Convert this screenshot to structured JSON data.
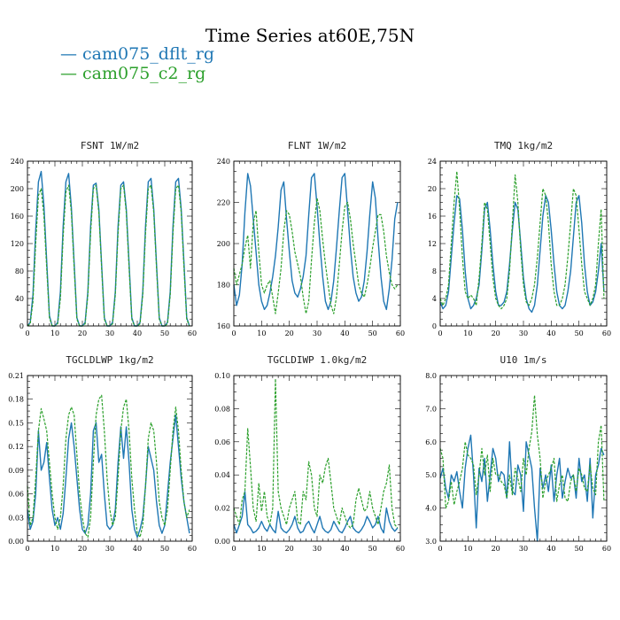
{
  "title": "Time Series at60E,75N",
  "legend": [
    {
      "label": "— cam075_dflt_rg",
      "color": "#1f77b4"
    },
    {
      "label": "— cam075_c2_rg",
      "color": "#2ca02c"
    }
  ],
  "chart_data": [
    {
      "type": "line",
      "title": "FSNT   1W/m2",
      "xlim": [
        0,
        60
      ],
      "ylim": [
        0,
        240
      ],
      "xticks": [
        0,
        10,
        20,
        30,
        40,
        50,
        60
      ],
      "yticks": [
        0,
        40,
        80,
        120,
        160,
        200,
        240
      ],
      "ytick_labels": [
        "0",
        "40",
        "80",
        "120",
        "160",
        "200",
        "240"
      ],
      "series": [
        {
          "color": "#1f77b4",
          "dashed": false,
          "values": [
            0,
            5,
            45,
            140,
            210,
            225,
            175,
            95,
            15,
            0,
            0,
            5,
            50,
            145,
            210,
            222,
            172,
            92,
            12,
            0,
            0,
            5,
            50,
            145,
            205,
            208,
            170,
            90,
            12,
            0,
            0,
            5,
            50,
            145,
            205,
            210,
            170,
            92,
            12,
            0,
            0,
            5,
            50,
            145,
            210,
            215,
            170,
            90,
            12,
            0,
            0,
            5,
            50,
            145,
            210,
            215,
            170,
            92,
            12,
            0
          ]
        },
        {
          "color": "#2ca02c",
          "dashed": true,
          "values": [
            0,
            3,
            35,
            120,
            190,
            200,
            160,
            85,
            12,
            0,
            0,
            3,
            40,
            130,
            195,
            205,
            165,
            85,
            10,
            0,
            0,
            3,
            45,
            135,
            200,
            205,
            165,
            85,
            10,
            0,
            0,
            3,
            45,
            135,
            200,
            205,
            165,
            85,
            10,
            0,
            0,
            3,
            45,
            135,
            200,
            205,
            165,
            85,
            10,
            0,
            0,
            3,
            45,
            135,
            200,
            205,
            165,
            85,
            10,
            0
          ]
        }
      ]
    },
    {
      "type": "line",
      "title": "FLNT   1W/m2",
      "xlim": [
        0,
        60
      ],
      "ylim": [
        160,
        240
      ],
      "xticks": [
        0,
        10,
        20,
        30,
        40,
        50,
        60
      ],
      "yticks": [
        160,
        180,
        200,
        220,
        240
      ],
      "ytick_labels": [
        "160",
        "180",
        "200",
        "220",
        "240"
      ],
      "series": [
        {
          "color": "#1f77b4",
          "dashed": false,
          "values": [
            180,
            170,
            175,
            190,
            215,
            234,
            228,
            212,
            196,
            180,
            172,
            168,
            170,
            176,
            184,
            194,
            208,
            226,
            230,
            212,
            196,
            182,
            176,
            174,
            178,
            184,
            194,
            214,
            232,
            234,
            218,
            200,
            184,
            172,
            168,
            172,
            182,
            198,
            216,
            232,
            234,
            216,
            198,
            184,
            176,
            172,
            174,
            182,
            196,
            214,
            230,
            222,
            202,
            184,
            172,
            168,
            178,
            192,
            212,
            220
          ]
        },
        {
          "color": "#2ca02c",
          "dashed": true,
          "values": [
            188,
            180,
            185,
            190,
            198,
            204,
            188,
            210,
            216,
            196,
            180,
            176,
            180,
            182,
            174,
            166,
            176,
            188,
            206,
            216,
            214,
            206,
            196,
            190,
            184,
            174,
            166,
            172,
            192,
            210,
            222,
            216,
            202,
            190,
            180,
            170,
            166,
            174,
            190,
            206,
            218,
            220,
            212,
            200,
            190,
            180,
            176,
            174,
            180,
            188,
            198,
            206,
            214,
            214,
            206,
            194,
            186,
            180,
            178,
            180
          ]
        }
      ]
    },
    {
      "type": "line",
      "title": "TMQ   1kg/m2",
      "xlim": [
        0,
        60
      ],
      "ylim": [
        0,
        24
      ],
      "xticks": [
        0,
        10,
        20,
        30,
        40,
        50,
        60
      ],
      "yticks": [
        0,
        4,
        8,
        12,
        16,
        20,
        24
      ],
      "ytick_labels": [
        "0",
        "4",
        "8",
        "12",
        "16",
        "20",
        "24"
      ],
      "series": [
        {
          "color": "#1f77b4",
          "dashed": false,
          "values": [
            3.5,
            2.5,
            3,
            5,
            10,
            15,
            19,
            18.5,
            14,
            8,
            4,
            2.5,
            3,
            4,
            6,
            11,
            17,
            18,
            14,
            9,
            5,
            3,
            3,
            3.5,
            5,
            9,
            14,
            18,
            17,
            12,
            7,
            4,
            2.5,
            2,
            3,
            6,
            11,
            16,
            19,
            18,
            14,
            9,
            5,
            3,
            2.5,
            3,
            5,
            8,
            13,
            18,
            19,
            15,
            9,
            5,
            3,
            3.5,
            5,
            8,
            12,
            5
          ]
        },
        {
          "color": "#2ca02c",
          "dashed": true,
          "values": [
            4,
            3,
            4,
            6,
            12,
            18,
            22.5,
            17,
            10,
            5,
            4,
            4.5,
            4,
            3,
            7,
            12,
            18,
            17,
            12,
            7,
            4,
            3,
            2.5,
            3,
            4,
            8,
            15,
            22,
            18,
            11,
            6,
            3.5,
            3,
            4,
            6,
            10,
            15,
            20,
            19,
            15,
            9,
            5,
            3,
            3,
            4,
            6,
            10,
            15,
            20,
            19,
            14,
            9,
            5,
            4,
            3,
            4,
            6,
            12,
            17,
            4
          ]
        }
      ]
    },
    {
      "type": "line",
      "title": "TGCLDLWP   1kg/m2",
      "xlim": [
        0,
        60
      ],
      "ylim": [
        0,
        0.21
      ],
      "xticks": [
        0,
        10,
        20,
        30,
        40,
        50,
        60
      ],
      "yticks": [
        0,
        0.03,
        0.06,
        0.09,
        0.12,
        0.15,
        0.18,
        0.21
      ],
      "ytick_labels": [
        "0.00",
        "0.03",
        "0.06",
        "0.09",
        "0.12",
        "0.15",
        "0.18",
        "0.21"
      ],
      "series": [
        {
          "color": "#1f77b4",
          "dashed": false,
          "values": [
            0.04,
            0.015,
            0.025,
            0.06,
            0.14,
            0.09,
            0.1,
            0.125,
            0.08,
            0.04,
            0.02,
            0.03,
            0.015,
            0.035,
            0.08,
            0.13,
            0.15,
            0.12,
            0.08,
            0.04,
            0.015,
            0.01,
            0.02,
            0.06,
            0.14,
            0.15,
            0.1,
            0.11,
            0.06,
            0.02,
            0.015,
            0.02,
            0.04,
            0.1,
            0.145,
            0.105,
            0.145,
            0.1,
            0.04,
            0.015,
            0.005,
            0.015,
            0.03,
            0.07,
            0.12,
            0.105,
            0.09,
            0.05,
            0.02,
            0.01,
            0.02,
            0.06,
            0.1,
            0.13,
            0.16,
            0.12,
            0.08,
            0.05,
            0.03,
            0.01
          ]
        },
        {
          "color": "#2ca02c",
          "dashed": true,
          "values": [
            0.07,
            0.02,
            0.03,
            0.08,
            0.14,
            0.168,
            0.155,
            0.14,
            0.1,
            0.06,
            0.03,
            0.015,
            0.03,
            0.07,
            0.13,
            0.16,
            0.17,
            0.16,
            0.11,
            0.06,
            0.03,
            0.01,
            0.005,
            0.03,
            0.1,
            0.16,
            0.18,
            0.185,
            0.14,
            0.08,
            0.04,
            0.02,
            0.03,
            0.08,
            0.14,
            0.17,
            0.18,
            0.14,
            0.08,
            0.04,
            0.01,
            0.005,
            0.02,
            0.07,
            0.13,
            0.15,
            0.14,
            0.1,
            0.05,
            0.03,
            0.02,
            0.04,
            0.09,
            0.14,
            0.17,
            0.14,
            0.09,
            0.05,
            0.03,
            0.04
          ]
        }
      ]
    },
    {
      "type": "line",
      "title": "TGCLDIWP   1.0kg/m2",
      "xlim": [
        0,
        60
      ],
      "ylim": [
        0,
        0.1
      ],
      "xticks": [
        0,
        10,
        20,
        30,
        40,
        50,
        60
      ],
      "yticks": [
        0,
        0.02,
        0.04,
        0.06,
        0.08,
        0.1
      ],
      "ytick_labels": [
        "0.00",
        "0.02",
        "0.04",
        "0.06",
        "0.08",
        "0.10"
      ],
      "series": [
        {
          "color": "#1f77b4",
          "dashed": false,
          "values": [
            0.01,
            0.005,
            0.01,
            0.015,
            0.03,
            0.01,
            0.008,
            0.005,
            0.006,
            0.008,
            0.012,
            0.008,
            0.006,
            0.01,
            0.007,
            0.005,
            0.018,
            0.008,
            0.006,
            0.005,
            0.007,
            0.01,
            0.015,
            0.008,
            0.005,
            0.006,
            0.01,
            0.012,
            0.008,
            0.005,
            0.01,
            0.015,
            0.008,
            0.006,
            0.005,
            0.007,
            0.012,
            0.009,
            0.006,
            0.005,
            0.008,
            0.012,
            0.015,
            0.008,
            0.006,
            0.005,
            0.007,
            0.01,
            0.015,
            0.012,
            0.008,
            0.01,
            0.015,
            0.008,
            0.005,
            0.02,
            0.012,
            0.008,
            0.006,
            0.008
          ]
        },
        {
          "color": "#2ca02c",
          "dashed": true,
          "values": [
            0.02,
            0.015,
            0.01,
            0.025,
            0.03,
            0.068,
            0.045,
            0.02,
            0.012,
            0.035,
            0.018,
            0.03,
            0.015,
            0.01,
            0.02,
            0.098,
            0.03,
            0.02,
            0.015,
            0.01,
            0.02,
            0.025,
            0.03,
            0.012,
            0.01,
            0.03,
            0.025,
            0.048,
            0.04,
            0.02,
            0.015,
            0.04,
            0.035,
            0.045,
            0.05,
            0.035,
            0.02,
            0.015,
            0.01,
            0.02,
            0.015,
            0.01,
            0.008,
            0.01,
            0.025,
            0.032,
            0.025,
            0.018,
            0.02,
            0.03,
            0.02,
            0.015,
            0.01,
            0.02,
            0.03,
            0.035,
            0.046,
            0.02,
            0.01,
            0.008
          ]
        }
      ]
    },
    {
      "type": "line",
      "title": "U10   1m/s",
      "xlim": [
        0,
        60
      ],
      "ylim": [
        3.0,
        8.0
      ],
      "xticks": [
        0,
        10,
        20,
        30,
        40,
        50,
        60
      ],
      "yticks": [
        3,
        4,
        5,
        6,
        7,
        8
      ],
      "ytick_labels": [
        "3.0",
        "4.0",
        "5.0",
        "6.0",
        "7.0",
        "8.0"
      ],
      "series": [
        {
          "color": "#1f77b4",
          "dashed": false,
          "values": [
            4.9,
            5.2,
            4.6,
            4.3,
            5.0,
            4.8,
            5.1,
            4.5,
            4.0,
            5.2,
            5.8,
            6.2,
            5.0,
            3.4,
            5.2,
            4.8,
            5.5,
            4.2,
            5.0,
            5.8,
            5.5,
            4.8,
            5.1,
            5.0,
            4.3,
            6.0,
            4.5,
            4.4,
            5.3,
            5.0,
            3.9,
            6.0,
            5.6,
            5.2,
            4.0,
            3.0,
            5.2,
            4.6,
            5.0,
            4.5,
            5.3,
            4.2,
            5.0,
            5.5,
            4.3,
            4.8,
            5.2,
            4.9,
            5.0,
            4.3,
            5.5,
            4.8,
            5.0,
            4.2,
            5.5,
            3.7,
            5.0,
            5.3,
            5.8,
            5.6
          ]
        },
        {
          "color": "#2ca02c",
          "dashed": true,
          "values": [
            5.8,
            5.5,
            4.0,
            4.2,
            4.8,
            4.1,
            4.5,
            4.8,
            5.2,
            6.0,
            5.6,
            5.5,
            5.3,
            4.4,
            5.0,
            5.8,
            5.0,
            5.6,
            4.5,
            5.5,
            5.0,
            5.0,
            4.8,
            4.7,
            4.3,
            5.0,
            4.4,
            5.2,
            4.9,
            4.5,
            5.5,
            5.0,
            5.8,
            6.3,
            7.4,
            6.2,
            5.5,
            4.3,
            4.8,
            5.0,
            5.2,
            5.5,
            4.2,
            4.7,
            5.0,
            4.3,
            4.2,
            4.8,
            5.0,
            4.5,
            5.2,
            5.0,
            4.6,
            4.5,
            5.3,
            4.6,
            4.4,
            6.0,
            6.5,
            4.2
          ]
        }
      ]
    }
  ]
}
